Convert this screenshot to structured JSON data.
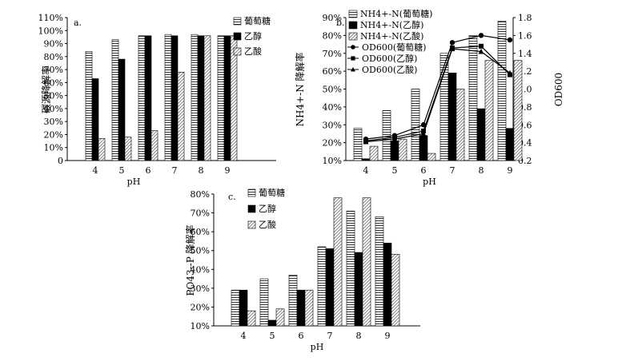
{
  "chart_data": [
    {
      "type": "bar",
      "panel_label": "a.",
      "xlabel": "pH",
      "ylabel": "碳源降解率",
      "categories": [
        "4",
        "5",
        "6",
        "7",
        "8",
        "9"
      ],
      "yticks": [
        "0",
        "10%",
        "20%",
        "30%",
        "40%",
        "50%",
        "60%",
        "70%",
        "80%",
        "90%",
        "100%",
        "110%"
      ],
      "ylim": [
        0,
        110
      ],
      "series": [
        {
          "name": "葡萄糖",
          "pattern": "hstripe",
          "values": [
            84,
            93,
            96,
            97,
            97,
            96
          ]
        },
        {
          "name": "乙醇",
          "pattern": "solid",
          "values": [
            63,
            78,
            96,
            96,
            96,
            96
          ]
        },
        {
          "name": "乙酸",
          "pattern": "dstripe",
          "values": [
            17,
            18,
            23,
            68,
            96,
            96
          ]
        }
      ],
      "legend_position": "top-right"
    },
    {
      "type": "bar",
      "panel_label": "b.",
      "xlabel": "pH",
      "ylabel": "NH4+-N 降解率",
      "y2label": "OD600",
      "categories": [
        "4",
        "5",
        "6",
        "7",
        "8",
        "9"
      ],
      "yticks": [
        "10%",
        "20%",
        "30%",
        "40%",
        "50%",
        "60%",
        "70%",
        "80%",
        "90%"
      ],
      "y2ticks": [
        "0.2",
        "0.4",
        "0.6",
        "0.8",
        "1.0",
        "1.2",
        "1.4",
        "1.6",
        "1.8"
      ],
      "ylim": [
        10,
        90
      ],
      "y2lim": [
        0.2,
        1.8
      ],
      "series": [
        {
          "name": "NH4+-N(葡萄糖)",
          "pattern": "hstripe",
          "values": [
            28,
            38,
            50,
            70,
            80,
            88
          ]
        },
        {
          "name": "NH4+-N(乙醇)",
          "pattern": "solid",
          "values": [
            11,
            21,
            24,
            59,
            39,
            28
          ]
        },
        {
          "name": "NH4+-N(乙酸)",
          "pattern": "dstripe",
          "values": [
            18,
            22,
            14,
            50,
            66,
            66
          ]
        }
      ],
      "lines": [
        {
          "name": "OD600(葡萄糖)",
          "marker": "circle",
          "values": [
            0.44,
            0.48,
            0.6,
            1.52,
            1.6,
            1.55
          ]
        },
        {
          "name": "OD600(乙醇)",
          "marker": "square",
          "values": [
            0.42,
            0.46,
            0.53,
            1.46,
            1.48,
            1.16
          ]
        },
        {
          "name": "OD600(乙酸)",
          "marker": "triangle",
          "values": [
            0.41,
            0.44,
            0.5,
            1.45,
            1.42,
            1.18
          ]
        }
      ],
      "legend_position": "top-left"
    },
    {
      "type": "bar",
      "panel_label": "c.",
      "xlabel": "pH",
      "ylabel": "PO43--P 降解率",
      "categories": [
        "4",
        "5",
        "6",
        "7",
        "8",
        "9"
      ],
      "yticks": [
        "10%",
        "20%",
        "30%",
        "40%",
        "50%",
        "60%",
        "70%",
        "80%"
      ],
      "ylim": [
        10,
        80
      ],
      "series": [
        {
          "name": "葡萄糖",
          "pattern": "hstripe",
          "values": [
            29,
            35,
            37,
            52,
            71,
            68
          ]
        },
        {
          "name": "乙醇",
          "pattern": "solid",
          "values": [
            29,
            13,
            29,
            51,
            49,
            54
          ]
        },
        {
          "name": "乙酸",
          "pattern": "dstripe",
          "values": [
            18,
            19,
            29,
            78,
            78,
            48
          ]
        }
      ],
      "legend_position": "top-left"
    }
  ]
}
